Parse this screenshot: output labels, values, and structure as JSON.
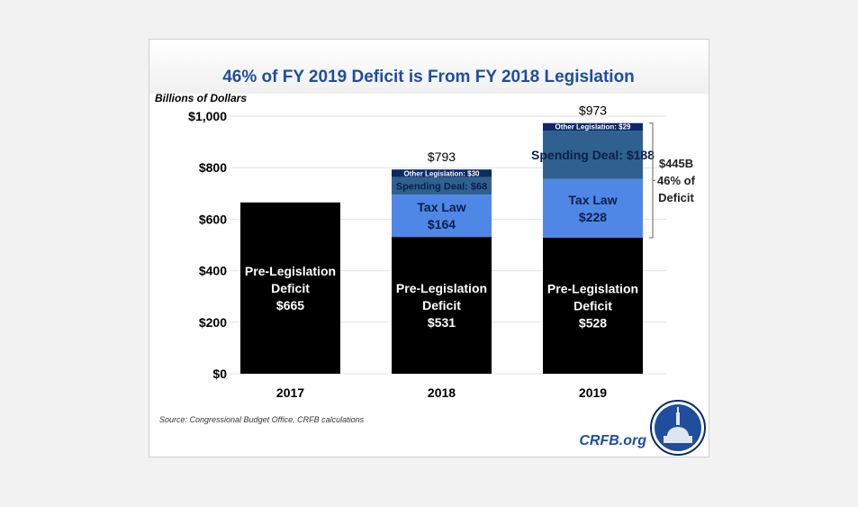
{
  "chart_data": {
    "type": "bar",
    "stacked": true,
    "title": "46% of FY 2019 Deficit is From FY 2018 Legislation",
    "ylabel": "Billions of Dollars",
    "xlabel": "",
    "ylim": [
      0,
      1000
    ],
    "yticks": [
      0,
      200,
      400,
      600,
      800,
      1000
    ],
    "ytick_labels": [
      "$0",
      "$200",
      "$400",
      "$600",
      "$800",
      "$1,000"
    ],
    "grid": true,
    "categories": [
      "2017",
      "2018",
      "2019"
    ],
    "totals": [
      null,
      "$793",
      "$973"
    ],
    "series": [
      {
        "name": "Pre-Legislation Deficit",
        "color": "#000000",
        "values": [
          665,
          531,
          528
        ],
        "labels": [
          [
            "Pre-Legislation",
            "Deficit",
            "$665"
          ],
          [
            "Pre-Legislation",
            "Deficit",
            "$531"
          ],
          [
            "Pre-Legislation",
            "Deficit",
            "$528"
          ]
        ],
        "label_color": "#ffffff"
      },
      {
        "name": "Tax Law",
        "color": "#4f87e6",
        "values": [
          0,
          164,
          228
        ],
        "labels": [
          null,
          [
            "Tax Law",
            "$164"
          ],
          [
            "Tax Law",
            "$228"
          ]
        ],
        "label_color": "#0b1f4a"
      },
      {
        "name": "Spending Deal",
        "color": "#2f6190",
        "values": [
          0,
          68,
          188
        ],
        "labels": [
          null,
          [
            "Spending Deal: $68"
          ],
          [
            "Spending Deal: $188"
          ]
        ],
        "label_color": "#0b1f4a"
      },
      {
        "name": "Other Legislation",
        "color": "#0c2968",
        "values": [
          0,
          30,
          29
        ],
        "labels": [
          null,
          [
            "Other Legislation: $30"
          ],
          [
            "Other Legislation: $29"
          ]
        ],
        "label_color": "#ffffff"
      }
    ],
    "annotation": [
      "$445B",
      "46% of",
      "Deficit"
    ],
    "source": "Source: Congressional  Budget Office, CRFB calculations"
  },
  "branding": {
    "site": "CRFB.org",
    "logo_text": "CRFB"
  }
}
